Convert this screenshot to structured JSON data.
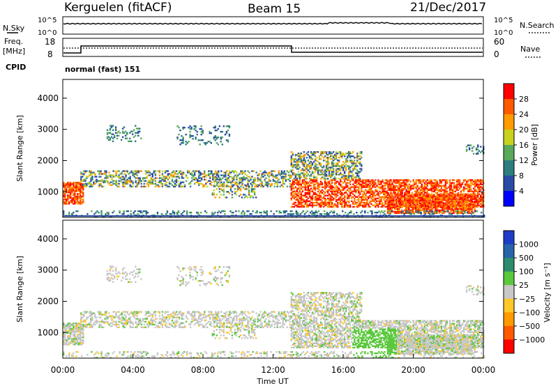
{
  "header": {
    "station": "Kerguelen (fitACF)",
    "beam": "Beam 15",
    "date": "21/Dec/2017"
  },
  "sky_panel": {
    "left_label": "N.Sky",
    "right_label": "N.Search",
    "left_ticks": [
      "10^5",
      "10^0"
    ],
    "right_ticks": [
      "10^5",
      "10^0"
    ]
  },
  "freq_panel": {
    "left_label_1": "Freq.",
    "left_label_2": "[MHz]",
    "right_label": "Nave",
    "left_ticks": [
      "18",
      "8"
    ],
    "right_ticks": [
      "60",
      "0"
    ],
    "cpid_label": "CPID",
    "cpid_text": "normal (fast) 151"
  },
  "chart_data": [
    {
      "type": "heatmap",
      "name": "power",
      "ylabel": "Slant Range [km]",
      "ylim": [
        180,
        4600
      ],
      "yticks": [
        "1000",
        "2000",
        "3000",
        "4000"
      ],
      "xlim": [
        0,
        24
      ],
      "colorbar_label": "Power [dB]",
      "colorbar_ticks": [
        "28",
        "24",
        "20",
        "16",
        "12",
        "8",
        "4"
      ],
      "colorbar_colors": [
        "#ff0000",
        "#ff5a00",
        "#ff9a00",
        "#c8d21e",
        "#5aa85a",
        "#2d7d7d",
        "#284ba5",
        "#0000ff"
      ]
    },
    {
      "type": "heatmap",
      "name": "velocity",
      "ylabel": "Slant Range [km]",
      "ylim": [
        180,
        4600
      ],
      "yticks": [
        "1000",
        "2000",
        "3000",
        "4000"
      ],
      "xlim": [
        0,
        24
      ],
      "xlabel": "Time UT",
      "xticks": [
        "00:00",
        "04:00",
        "08:00",
        "12:00",
        "16:00",
        "20:00",
        "00:00"
      ],
      "colorbar_label": "Velocity [m s⁻¹]",
      "colorbar_ticks": [
        "1000",
        "500",
        "100",
        "25",
        "−25",
        "−100",
        "−500",
        "−1000"
      ],
      "colorbar_colors": [
        "#1e3cc8",
        "#2864a8",
        "#2d8c6e",
        "#5ac83c",
        "#c8c8c8",
        "#ffc828",
        "#ff9a00",
        "#ff5a00",
        "#ff0000"
      ]
    }
  ]
}
